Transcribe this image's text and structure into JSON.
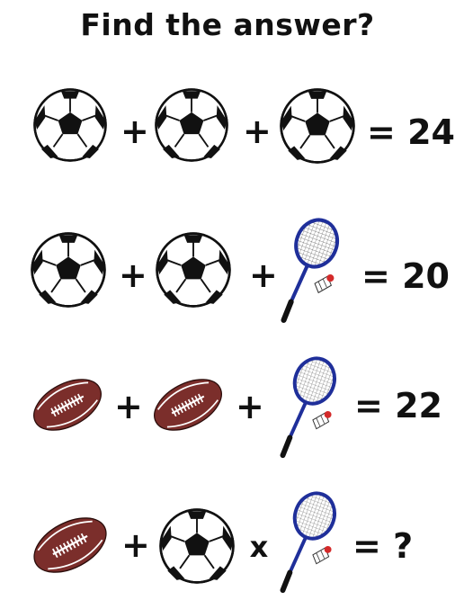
{
  "title": "Find the answer?",
  "icons": {
    "soccer": "soccer-ball-icon",
    "football": "american-football-icon",
    "racket": "badminton-racket-shuttlecock-icon"
  },
  "colors": {
    "football": "#7b2e2b",
    "racket": "#1f2f9a",
    "shuttle_tip": "#d42a2a"
  },
  "equations": [
    {
      "items": [
        "soccer",
        "soccer",
        "soccer"
      ],
      "ops": [
        "+",
        "+"
      ],
      "result": "= 24"
    },
    {
      "items": [
        "soccer",
        "soccer",
        "racket"
      ],
      "ops": [
        "+",
        "+"
      ],
      "result": "= 20"
    },
    {
      "items": [
        "football",
        "football",
        "racket"
      ],
      "ops": [
        "+",
        "+"
      ],
      "result": "= 22"
    },
    {
      "items": [
        "football",
        "soccer",
        "racket"
      ],
      "ops": [
        "+",
        "x"
      ],
      "result": "= ?"
    }
  ]
}
